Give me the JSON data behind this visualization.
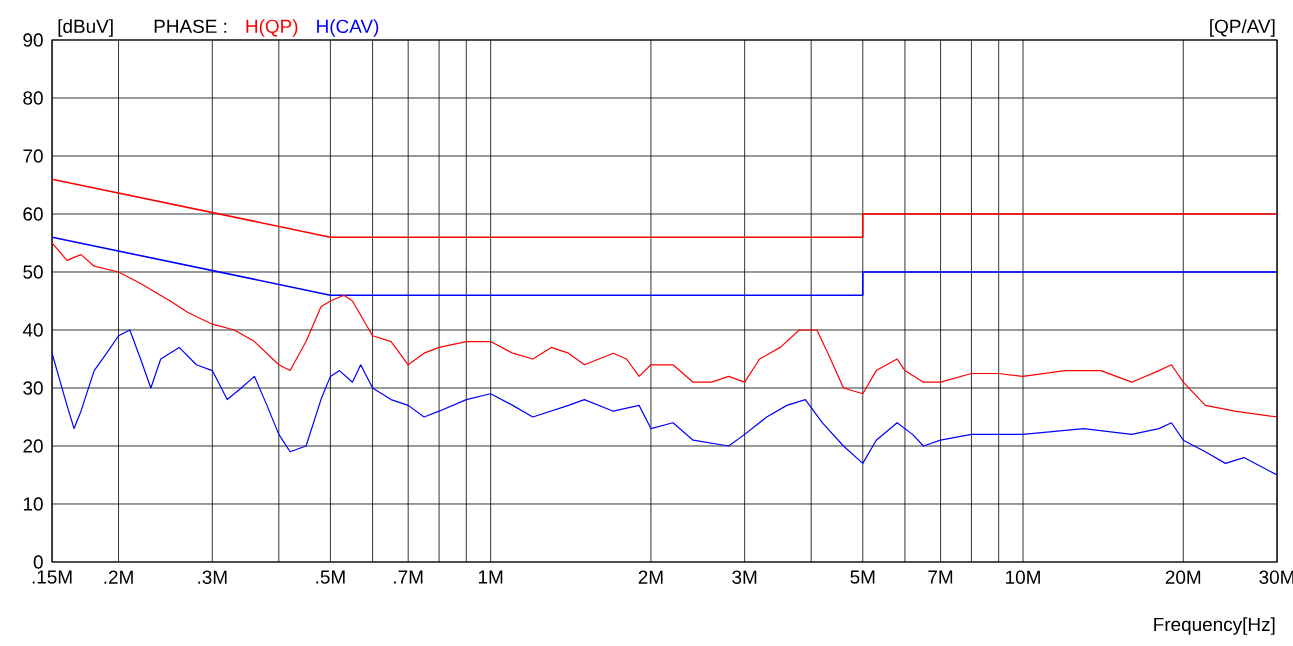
{
  "chart_data": {
    "type": "line",
    "ylabel": "[dBuV]",
    "xlabel": "Frequency[Hz]",
    "legend_title": "PHASE :",
    "legend": "top left",
    "annotations": [
      "[QP/AV]"
    ],
    "log": "x",
    "grid": true,
    "marker": "none",
    "line_style": "solid",
    "xlim": [
      150000,
      30000000
    ],
    "ylim": [
      0,
      90
    ],
    "xticks": [
      {
        "value": 150000,
        "label": ".15M"
      },
      {
        "value": 200000,
        "label": ".2M"
      },
      {
        "value": 300000,
        "label": ".3M"
      },
      {
        "value": 400000,
        "label": null
      },
      {
        "value": 500000,
        "label": ".5M"
      },
      {
        "value": 600000,
        "label": null
      },
      {
        "value": 700000,
        "label": ".7M"
      },
      {
        "value": 800000,
        "label": null
      },
      {
        "value": 900000,
        "label": null
      },
      {
        "value": 1000000,
        "label": "1M"
      },
      {
        "value": 2000000,
        "label": "2M"
      },
      {
        "value": 3000000,
        "label": "3M"
      },
      {
        "value": 4000000,
        "label": null
      },
      {
        "value": 5000000,
        "label": "5M"
      },
      {
        "value": 6000000,
        "label": null
      },
      {
        "value": 7000000,
        "label": "7M"
      },
      {
        "value": 8000000,
        "label": null
      },
      {
        "value": 9000000,
        "label": null
      },
      {
        "value": 10000000,
        "label": "10M"
      },
      {
        "value": 20000000,
        "label": "20M"
      },
      {
        "value": 30000000,
        "label": "30M"
      }
    ],
    "yticks": [
      0,
      10,
      20,
      30,
      40,
      50,
      60,
      70,
      80,
      90
    ],
    "series": [
      {
        "color": "#ff0000",
        "x": [
          150000,
          500000,
          5000000,
          5000000,
          30000000
        ],
        "values": [
          66,
          56,
          56,
          60,
          60
        ]
      },
      {
        "color": "#0000ff",
        "x": [
          150000,
          500000,
          5000000,
          5000000,
          30000000
        ],
        "values": [
          56,
          46,
          46,
          50,
          50
        ]
      },
      {
        "name": "H(QP)",
        "color": "#ff0000",
        "x": [
          150000,
          160000,
          170000,
          180000,
          200000,
          220000,
          250000,
          270000,
          300000,
          330000,
          360000,
          400000,
          420000,
          450000,
          480000,
          500000,
          530000,
          550000,
          600000,
          650000,
          700000,
          750000,
          800000,
          900000,
          1000000,
          1100000,
          1200000,
          1300000,
          1400000,
          1500000,
          1700000,
          1800000,
          1900000,
          2000000,
          2200000,
          2400000,
          2600000,
          2800000,
          3000000,
          3200000,
          3500000,
          3800000,
          4100000,
          4300000,
          4600000,
          5000000,
          5300000,
          5800000,
          6000000,
          6500000,
          7000000,
          8000000,
          9000000,
          10000000,
          12000000,
          14000000,
          16000000,
          18000000,
          19000000,
          20000000,
          22000000,
          25000000,
          30000000
        ],
        "values": [
          55,
          52,
          53,
          51,
          50,
          48,
          45,
          43,
          41,
          40,
          38,
          34,
          33,
          38,
          44,
          45,
          46,
          45,
          39,
          38,
          34,
          36,
          37,
          38,
          38,
          36,
          35,
          37,
          36,
          34,
          36,
          35,
          32,
          34,
          34,
          31,
          31,
          32,
          31,
          35,
          37,
          40,
          40,
          36,
          30,
          29,
          33,
          35,
          33,
          31,
          31,
          32.5,
          32.5,
          32,
          33,
          33,
          31,
          33,
          34,
          31,
          27,
          26,
          25
        ]
      },
      {
        "name": "H(CAV)",
        "color": "#0000ff",
        "x": [
          150000,
          160000,
          165000,
          170000,
          180000,
          190000,
          200000,
          210000,
          220000,
          230000,
          240000,
          260000,
          280000,
          300000,
          320000,
          340000,
          360000,
          380000,
          400000,
          420000,
          450000,
          480000,
          500000,
          520000,
          550000,
          570000,
          600000,
          650000,
          700000,
          750000,
          800000,
          900000,
          1000000,
          1100000,
          1200000,
          1400000,
          1500000,
          1700000,
          1900000,
          2000000,
          2200000,
          2400000,
          2800000,
          3000000,
          3300000,
          3600000,
          3900000,
          4200000,
          4600000,
          5000000,
          5300000,
          5800000,
          6200000,
          6500000,
          7000000,
          8000000,
          10000000,
          13000000,
          16000000,
          18000000,
          19000000,
          20000000,
          22000000,
          24000000,
          26000000,
          30000000
        ],
        "values": [
          36,
          27,
          23,
          26,
          33,
          36,
          39,
          40,
          35,
          30,
          35,
          37,
          34,
          33,
          28,
          30,
          32,
          27,
          22,
          19,
          20,
          28,
          32,
          33,
          31,
          34,
          30,
          28,
          27,
          25,
          26,
          28,
          29,
          27,
          25,
          27,
          28,
          26,
          27,
          23,
          24,
          21,
          20,
          22,
          25,
          27,
          28,
          24,
          20,
          17,
          21,
          24,
          22,
          20,
          21,
          22,
          22,
          23,
          22,
          23,
          24,
          21,
          19,
          17,
          18,
          15
        ]
      }
    ]
  }
}
